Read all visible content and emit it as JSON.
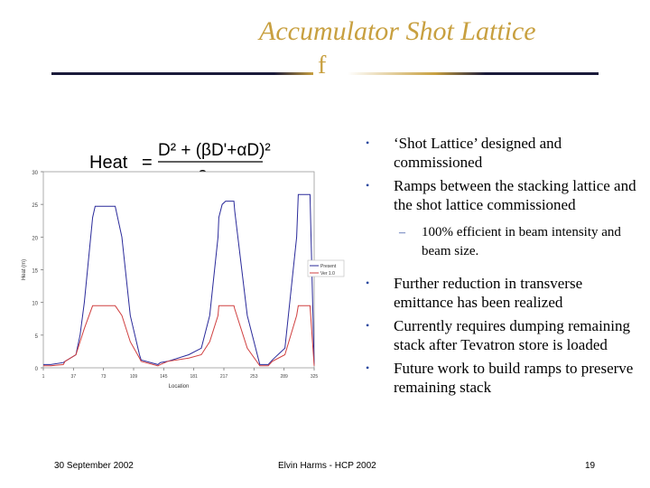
{
  "slide": {
    "title": "Accumulator Shot Lattice",
    "subtitle_glyph": "f"
  },
  "formula": {
    "lhs": "Heat",
    "eq": "=",
    "numerator": "D² + (βD'+αD)²",
    "denominator": "β"
  },
  "bullets": [
    {
      "text": "‘Shot Lattice’ designed and commissioned"
    },
    {
      "text": "Ramps between the stacking lattice and the shot lattice commissioned"
    }
  ],
  "sub_bullet": {
    "text": "100% efficient in beam intensity and beam size."
  },
  "bullets_after": [
    {
      "text": "Further reduction in transverse emittance has been realized"
    },
    {
      "text": "Currently requires dumping remaining stack after Tevatron store is loaded"
    },
    {
      "text": "Future work to build ramps to preserve remaining stack"
    }
  ],
  "chart_data": {
    "type": "line",
    "xlabel": "Location",
    "ylabel": "Heat (m)",
    "ylim": [
      0,
      30
    ],
    "y_ticks": [
      "0",
      "5",
      "10",
      "15",
      "20",
      "25",
      "30"
    ],
    "x_ticks": [
      "1",
      "37",
      "73",
      "109",
      "145",
      "181",
      "217",
      "253",
      "289",
      "325"
    ],
    "legend": [
      "Present",
      "Ver 1.0"
    ],
    "legend_position": "right",
    "series": [
      {
        "name": "Present",
        "color": "#2a2a9a",
        "x": [
          1,
          10,
          25,
          27,
          40,
          45,
          50,
          60,
          63,
          87,
          95,
          105,
          116,
          118,
          138,
          141,
          150,
          175,
          190,
          200,
          210,
          211,
          215,
          219,
          229,
          230,
          245,
          260,
          270,
          275,
          290,
          304,
          306,
          320,
          325
        ],
        "y": [
          0.5,
          0.5,
          0.8,
          1,
          2,
          5,
          10,
          23,
          24.7,
          24.7,
          20,
          8,
          2,
          1.2,
          0.5,
          0.8,
          1,
          2,
          3,
          8,
          20,
          23,
          25,
          25.5,
          25.5,
          24,
          8,
          0.5,
          0.5,
          1.2,
          3,
          20,
          26.5,
          26.5,
          0.5
        ]
      },
      {
        "name": "Ver 1.0",
        "color": "#d04040",
        "x": [
          1,
          10,
          25,
          27,
          40,
          45,
          50,
          60,
          63,
          87,
          95,
          105,
          116,
          118,
          138,
          141,
          150,
          175,
          190,
          200,
          210,
          211,
          215,
          219,
          229,
          230,
          245,
          260,
          270,
          275,
          290,
          304,
          306,
          320,
          325
        ],
        "y": [
          0.3,
          0.3,
          0.5,
          1,
          2,
          4,
          6,
          9.5,
          9.5,
          9.5,
          8,
          4,
          1.5,
          1,
          0.3,
          0.5,
          1,
          1.5,
          2,
          4,
          8,
          9.5,
          9.5,
          9.5,
          9.5,
          9,
          3,
          0.3,
          0.3,
          1,
          2,
          8,
          9.5,
          9.5,
          0.3
        ]
      }
    ]
  },
  "footer": {
    "date": "30 September 2002",
    "author": "Elvin Harms - HCP 2002",
    "page": "19"
  },
  "colors": {
    "accent": "#c8a040",
    "rule": "#1a1a3a",
    "bullet": "#2c4aa0"
  }
}
